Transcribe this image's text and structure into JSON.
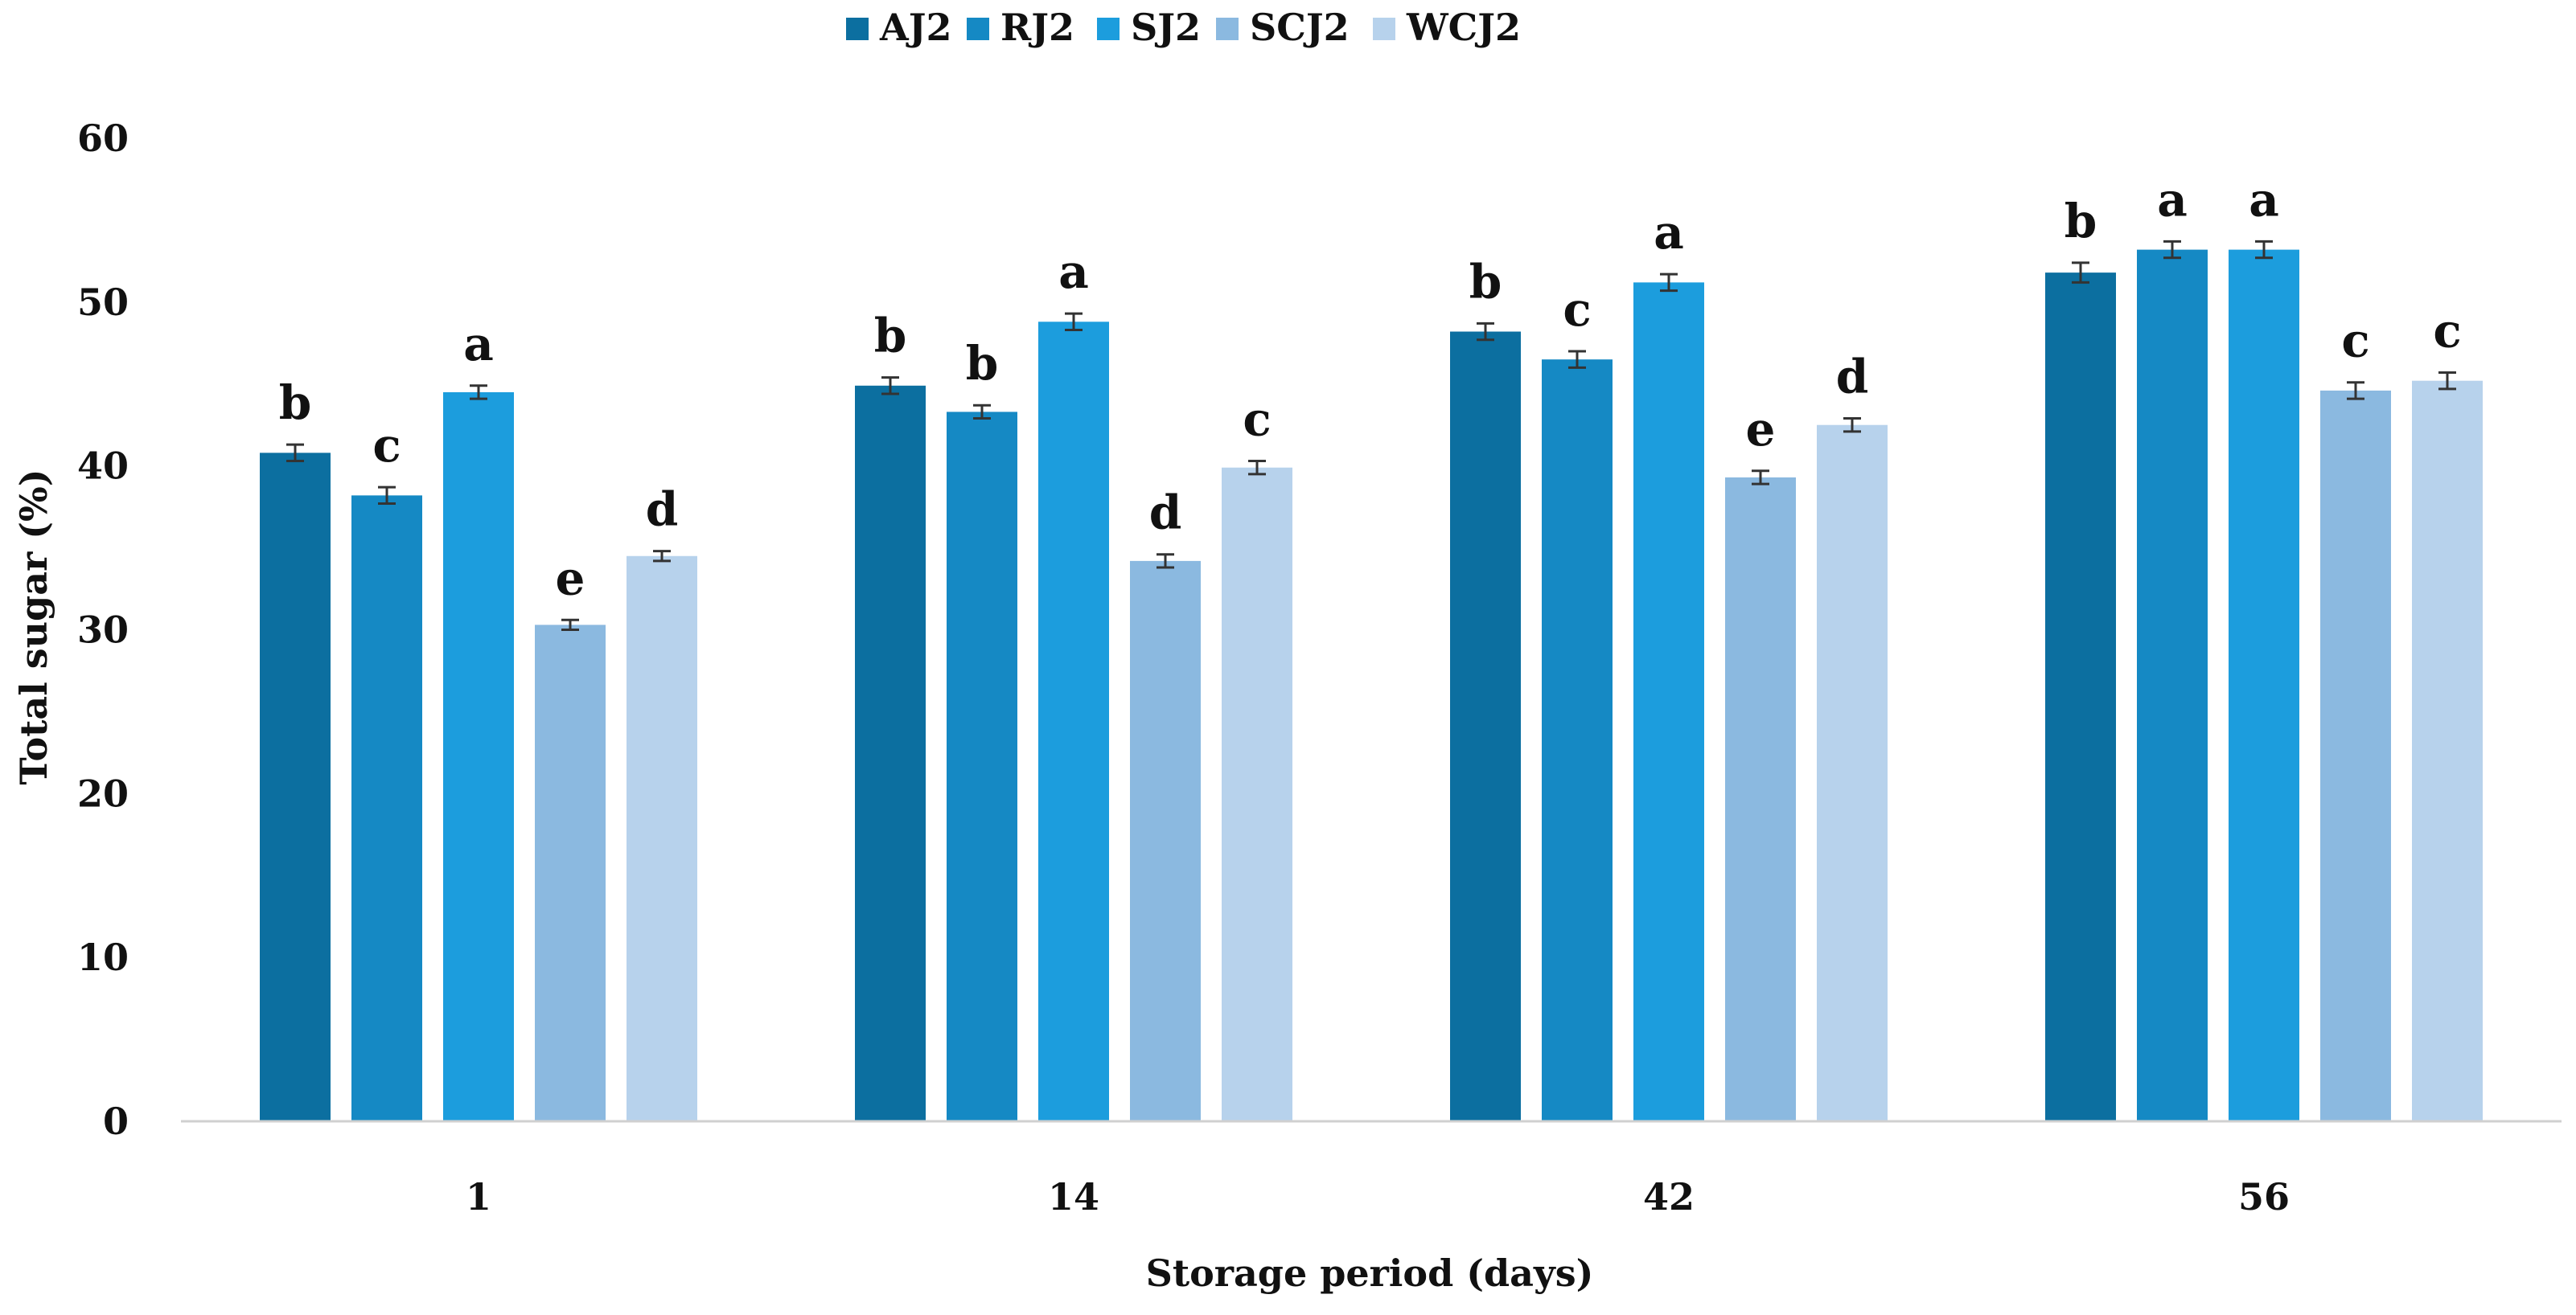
{
  "chart_data": {
    "type": "bar",
    "xlabel": "Storage period  (days)",
    "ylabel": "Total sugar (%)",
    "ylim": [
      0,
      60
    ],
    "yticks": [
      0,
      10,
      20,
      30,
      40,
      50,
      60
    ],
    "grid": false,
    "legend_position": "top",
    "categories": [
      "1",
      "14",
      "42",
      "56"
    ],
    "series": [
      {
        "name": "AJ2",
        "color": "#0c6fa0",
        "values": [
          40.8,
          44.9,
          48.2,
          51.8
        ],
        "errors": [
          0.5,
          0.5,
          0.5,
          0.6
        ],
        "letters": [
          "b",
          "b",
          "b",
          "b"
        ]
      },
      {
        "name": "RJ2",
        "color": "#1589c4",
        "values": [
          38.2,
          43.3,
          46.5,
          53.2
        ],
        "errors": [
          0.5,
          0.4,
          0.5,
          0.5
        ],
        "letters": [
          "c",
          "b",
          "c",
          "a"
        ]
      },
      {
        "name": "SJ2",
        "color": "#1c9ddd",
        "values": [
          44.5,
          48.8,
          51.2,
          53.2
        ],
        "errors": [
          0.4,
          0.5,
          0.5,
          0.5
        ],
        "letters": [
          "a",
          "a",
          "a",
          "a"
        ]
      },
      {
        "name": "SCJ2",
        "color": "#8bb9e0",
        "values": [
          30.3,
          34.2,
          39.3,
          44.6
        ],
        "errors": [
          0.3,
          0.4,
          0.4,
          0.5
        ],
        "letters": [
          "e",
          "d",
          "e",
          "c"
        ]
      },
      {
        "name": "WCJ2",
        "color": "#b7d2ec",
        "values": [
          34.5,
          39.9,
          42.5,
          45.2
        ],
        "errors": [
          0.3,
          0.4,
          0.4,
          0.5
        ],
        "letters": [
          "d",
          "c",
          "d",
          "c"
        ]
      }
    ]
  }
}
